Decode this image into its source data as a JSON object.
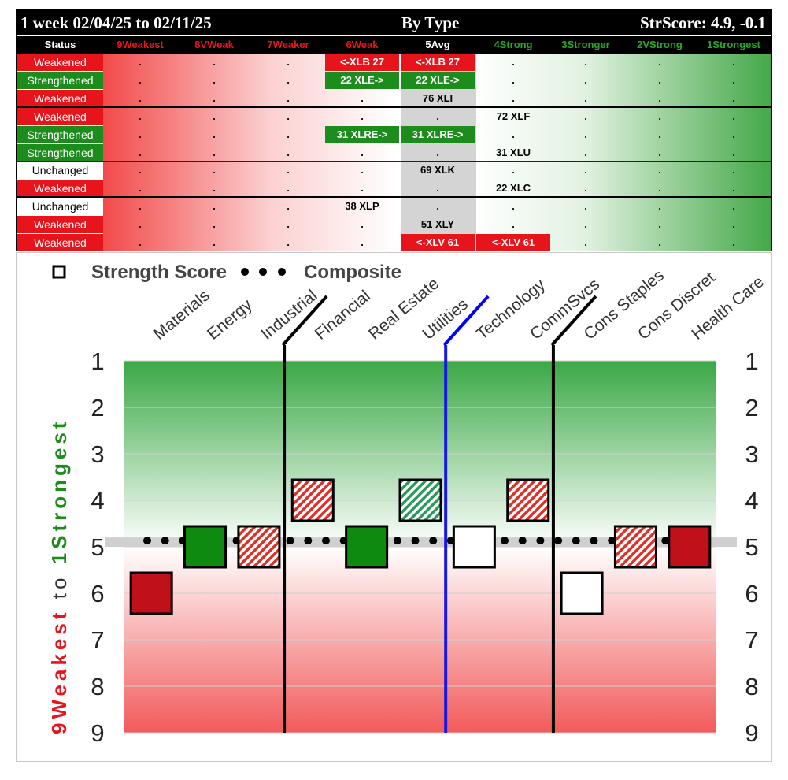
{
  "header": {
    "period": "1 week 02/04/25 to 02/11/25",
    "view": "By Type",
    "strscore": "StrScore: 4.9, -0.1"
  },
  "table": {
    "status_header": "Status",
    "columns": [
      {
        "label": "9Weakest",
        "color": "#e8141c"
      },
      {
        "label": "8VWeak",
        "color": "#e8141c"
      },
      {
        "label": "7Weaker",
        "color": "#e8141c"
      },
      {
        "label": "6Weak",
        "color": "#e8141c"
      },
      {
        "label": "5Avg",
        "color": "#ffffff"
      },
      {
        "label": "4Strong",
        "color": "#28a828"
      },
      {
        "label": "3Stronger",
        "color": "#28a828"
      },
      {
        "label": "2VStrong",
        "color": "#28a828"
      },
      {
        "label": "1Strongest",
        "color": "#28a828"
      }
    ],
    "rows": [
      {
        "status": "Weakened",
        "cells": [
          ".",
          ".",
          ".",
          "<-XLB 27",
          "<-XLB 27",
          ".",
          ".",
          ".",
          "."
        ],
        "marked": [
          3,
          4
        ],
        "mark_color": "red"
      },
      {
        "status": "Strengthened",
        "cells": [
          ".",
          ".",
          ".",
          "22 XLE->",
          "22 XLE->",
          ".",
          ".",
          ".",
          "."
        ],
        "marked": [
          3,
          4
        ],
        "mark_color": "green"
      },
      {
        "status": "Weakened",
        "cells": [
          ".",
          ".",
          ".",
          ".",
          "76 XLI",
          ".",
          ".",
          ".",
          "."
        ],
        "marked": [],
        "mark_color": ""
      },
      {
        "status": "Weakened",
        "cells": [
          ".",
          ".",
          ".",
          ".",
          ".",
          "72 XLF",
          ".",
          ".",
          "."
        ],
        "marked": [],
        "mark_color": ""
      },
      {
        "status": "Strengthened",
        "cells": [
          ".",
          ".",
          ".",
          "31 XLRE->",
          "31 XLRE->",
          ".",
          ".",
          ".",
          "."
        ],
        "marked": [
          3,
          4
        ],
        "mark_color": "green"
      },
      {
        "status": "Strengthened",
        "cells": [
          ".",
          ".",
          ".",
          ".",
          ".",
          "31 XLU",
          ".",
          ".",
          "."
        ],
        "marked": [],
        "mark_color": ""
      },
      {
        "status": "Unchanged",
        "cells": [
          ".",
          ".",
          ".",
          ".",
          "69 XLK",
          ".",
          ".",
          ".",
          "."
        ],
        "marked": [],
        "mark_color": ""
      },
      {
        "status": "Weakened",
        "cells": [
          ".",
          ".",
          ".",
          ".",
          ".",
          "22 XLC",
          ".",
          ".",
          "."
        ],
        "marked": [],
        "mark_color": ""
      },
      {
        "status": "Unchanged",
        "cells": [
          ".",
          ".",
          ".",
          "38 XLP",
          ".",
          ".",
          ".",
          ".",
          "."
        ],
        "marked": [],
        "mark_color": ""
      },
      {
        "status": "Weakened",
        "cells": [
          ".",
          ".",
          ".",
          ".",
          "51 XLY",
          ".",
          ".",
          ".",
          "."
        ],
        "marked": [],
        "mark_color": ""
      },
      {
        "status": "Weakened",
        "cells": [
          ".",
          ".",
          ".",
          ".",
          "<-XLV 61",
          "<-XLV 61",
          ".",
          ".",
          "."
        ],
        "marked": [
          4,
          5
        ],
        "mark_color": "red"
      }
    ]
  },
  "chart_data": {
    "type": "scatter",
    "legend": {
      "square_label": "Strength Score",
      "dots_label": "Composite",
      "placement": "top-left"
    },
    "categories": [
      "Materials",
      "Energy",
      "Industrial",
      "Financial",
      "Real Estate",
      "Utilities",
      "Technology",
      "CommSvcs",
      "Cons Staples",
      "Cons Discret",
      "Health Care"
    ],
    "strength_score": [
      6,
      5,
      5,
      4,
      5,
      4,
      5,
      4,
      6,
      5,
      5
    ],
    "box_style": [
      "solid-red",
      "solid-green",
      "hatch-red",
      "hatch-red",
      "solid-green",
      "hatch-green",
      "open",
      "hatch-red",
      "open",
      "hatch-red",
      "solid-red"
    ],
    "composite": 4.9,
    "ylim": [
      1,
      9
    ],
    "y_ticks": [
      "1",
      "2",
      "3",
      "4",
      "5",
      "6",
      "7",
      "8",
      "9"
    ],
    "ylabel_weak": "9Weakest",
    "ylabel_to": "to",
    "ylabel_strong": "1Strongest",
    "dividers": [
      {
        "after_index": 2,
        "color": "#000000"
      },
      {
        "after_index": 5,
        "color": "#0000ff"
      },
      {
        "after_index": 7,
        "color": "#000000"
      }
    ],
    "colors": {
      "solid_red": "#c0101a",
      "solid_green": "#0e8a0e",
      "hatch_red": "#e0302a",
      "hatch_green": "#2a9a5a",
      "top_green": "#3aa845",
      "bottom_red": "#f25a5a"
    },
    "grid": true
  }
}
